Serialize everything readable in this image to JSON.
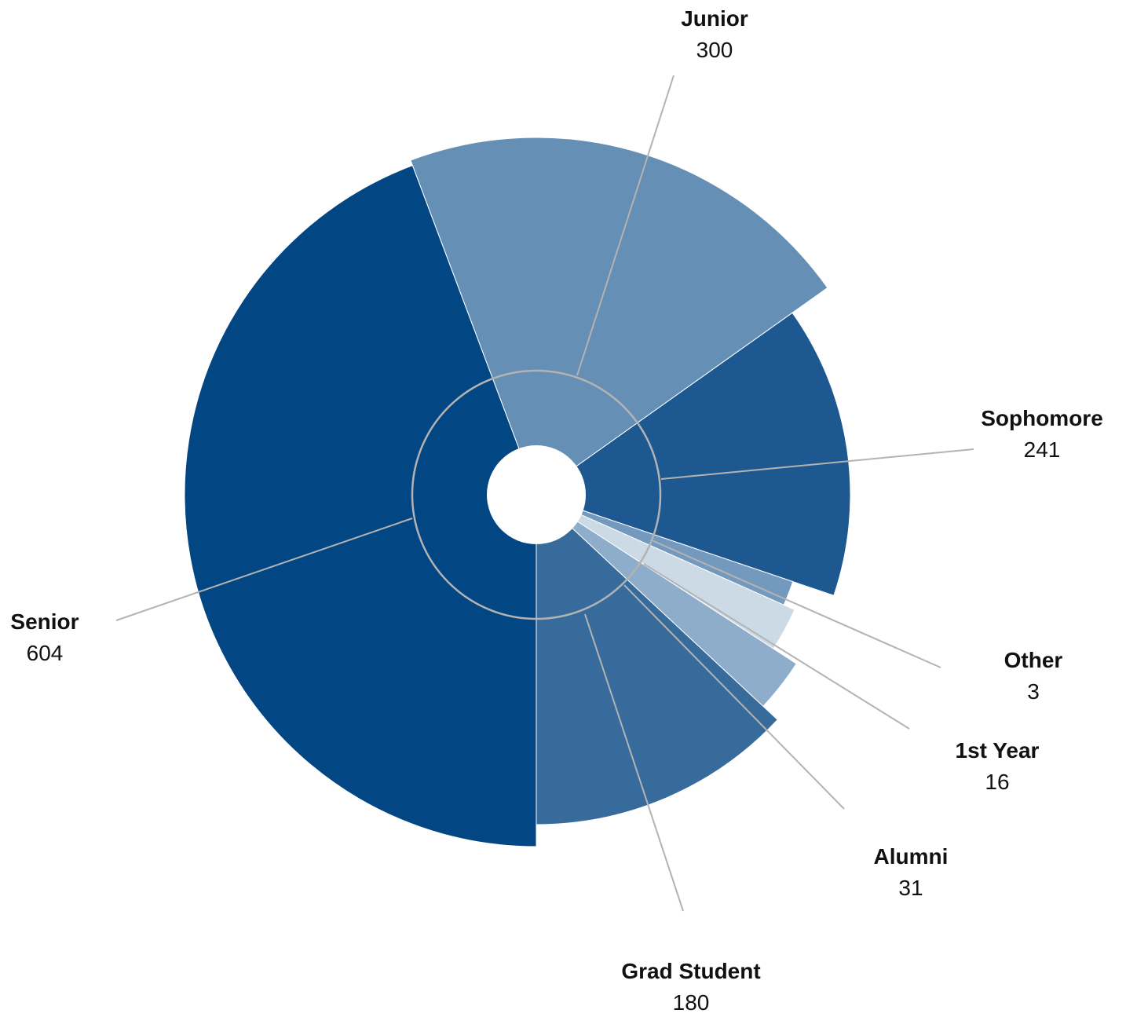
{
  "chart_data": {
    "type": "pie",
    "variant": "polar-area",
    "categories": [
      "Junior",
      "Sophomore",
      "Other",
      "1st Year",
      "Alumni",
      "Grad Student",
      "Senior"
    ],
    "values": [
      300,
      241,
      3,
      16,
      31,
      180,
      604
    ],
    "colors": {
      "Junior": "#668fb5",
      "Sophomore": "#1d5890",
      "Other": "#7399bf",
      "1st Year": "#ccdae6",
      "Alumni": "#8eadca",
      "Grad Student": "#376b9c",
      "Senior": "#034684"
    }
  },
  "labels": [
    {
      "name": "Junior",
      "value": "300"
    },
    {
      "name": "Sophomore",
      "value": "241"
    },
    {
      "name": "Other",
      "value": "3"
    },
    {
      "name": "1st Year",
      "value": "16"
    },
    {
      "name": "Alumni",
      "value": "31"
    },
    {
      "name": "Grad Student",
      "value": "180"
    },
    {
      "name": "Senior",
      "value": "604"
    }
  ]
}
